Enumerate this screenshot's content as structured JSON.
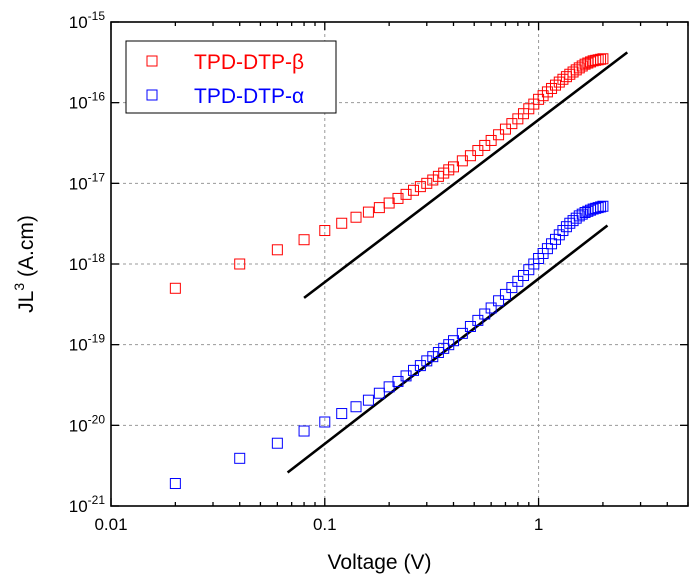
{
  "chart_data": {
    "type": "scatter",
    "x_scale": "log",
    "y_scale": "log",
    "xlim": [
      0.01,
      5
    ],
    "ylim_exponents": [
      -21,
      -15
    ],
    "xlabel": "Voltage (V)",
    "ylabel": {
      "base": "JL",
      "sup": "3",
      "rest": " (A.cm)"
    },
    "x_ticks": [
      {
        "value": 0.01,
        "label": "0.01"
      },
      {
        "value": 0.1,
        "label": "0.1"
      },
      {
        "value": 1,
        "label": "1"
      }
    ],
    "y_ticks": [
      {
        "exp": -21,
        "base": "10",
        "sup": "-21"
      },
      {
        "exp": -20,
        "base": "10",
        "sup": "-20"
      },
      {
        "exp": -19,
        "base": "10",
        "sup": "-19"
      },
      {
        "exp": -18,
        "base": "10",
        "sup": "-18"
      },
      {
        "exp": -17,
        "base": "10",
        "sup": "-17"
      },
      {
        "exp": -16,
        "base": "10",
        "sup": "-16"
      },
      {
        "exp": -15,
        "base": "10",
        "sup": "-15"
      }
    ],
    "grid": true,
    "legend_position": "top-left",
    "series": [
      {
        "name": "TPD-DTP-β",
        "color": "#ff0000",
        "marker": "open-square",
        "x": [
          0.02,
          0.04,
          0.06,
          0.08,
          0.1,
          0.12,
          0.14,
          0.16,
          0.18,
          0.2,
          0.22,
          0.24,
          0.26,
          0.28,
          0.3,
          0.32,
          0.34,
          0.36,
          0.38,
          0.4,
          0.44,
          0.48,
          0.52,
          0.56,
          0.6,
          0.65,
          0.7,
          0.75,
          0.8,
          0.85,
          0.9,
          0.95,
          1.0,
          1.05,
          1.1,
          1.15,
          1.2,
          1.25,
          1.3,
          1.35,
          1.4,
          1.45,
          1.5,
          1.55,
          1.6,
          1.65,
          1.7,
          1.75,
          1.8,
          1.85,
          1.9,
          1.95,
          2.0
        ],
        "y": [
          5e-19,
          1e-18,
          1.5e-18,
          2e-18,
          2.6e-18,
          3.2e-18,
          3.8e-18,
          4.4e-18,
          5e-18,
          5.7e-18,
          6.5e-18,
          7.3e-18,
          8.2e-18,
          9.1e-18,
          1e-17,
          1.1e-17,
          1.22e-17,
          1.34e-17,
          1.47e-17,
          1.6e-17,
          1.9e-17,
          2.2e-17,
          2.55e-17,
          2.95e-17,
          3.4e-17,
          4e-17,
          4.7e-17,
          5.5e-17,
          6.3e-17,
          7.3e-17,
          8.4e-17,
          9.6e-17,
          1.1e-16,
          1.22e-16,
          1.36e-16,
          1.5e-16,
          1.65e-16,
          1.8e-16,
          1.95e-16,
          2.1e-16,
          2.25e-16,
          2.4e-16,
          2.55e-16,
          2.7e-16,
          2.85e-16,
          3e-16,
          3.1e-16,
          3.2e-16,
          3.3e-16,
          3.35e-16,
          3.4e-16,
          3.45e-16,
          3.5e-16
        ]
      },
      {
        "name": "TPD-DTP-α",
        "color": "#0000ff",
        "marker": "open-square",
        "x": [
          0.02,
          0.04,
          0.06,
          0.08,
          0.1,
          0.12,
          0.14,
          0.16,
          0.18,
          0.2,
          0.22,
          0.24,
          0.26,
          0.28,
          0.3,
          0.32,
          0.34,
          0.36,
          0.38,
          0.4,
          0.44,
          0.48,
          0.52,
          0.56,
          0.6,
          0.65,
          0.7,
          0.75,
          0.8,
          0.85,
          0.9,
          0.95,
          1.0,
          1.05,
          1.1,
          1.15,
          1.2,
          1.25,
          1.3,
          1.35,
          1.4,
          1.45,
          1.5,
          1.55,
          1.6,
          1.65,
          1.7,
          1.75,
          1.8,
          1.85,
          1.9,
          1.95,
          2.0
        ],
        "y": [
          1.9e-21,
          3.9e-21,
          6e-21,
          8.5e-21,
          1.1e-20,
          1.4e-20,
          1.7e-20,
          2.05e-20,
          2.5e-20,
          3e-20,
          3.5e-20,
          4.1e-20,
          4.8e-20,
          5.5e-20,
          6.3e-20,
          7.1e-20,
          8e-20,
          9e-20,
          1e-19,
          1.12e-19,
          1.38e-19,
          1.68e-19,
          2e-19,
          2.4e-19,
          2.85e-19,
          3.5e-19,
          4.2e-19,
          5.1e-19,
          6.1e-19,
          7.2e-19,
          8.5e-19,
          1e-18,
          1.17e-18,
          1.35e-18,
          1.55e-18,
          1.78e-18,
          2.02e-18,
          2.3e-18,
          2.6e-18,
          2.9e-18,
          3.2e-18,
          3.45e-18,
          3.7e-18,
          3.95e-18,
          4.15e-18,
          4.35e-18,
          4.5e-18,
          4.65e-18,
          4.8e-18,
          4.9e-18,
          5e-18,
          5.1e-18,
          5.2e-18
        ]
      }
    ],
    "fit_lines": [
      {
        "color": "#000000",
        "x": [
          0.08,
          2.6
        ],
        "y": [
          3.8e-19,
          4.2e-16
        ]
      },
      {
        "color": "#000000",
        "x": [
          0.067,
          2.1
        ],
        "y": [
          2.6e-21,
          3e-18
        ]
      }
    ]
  }
}
